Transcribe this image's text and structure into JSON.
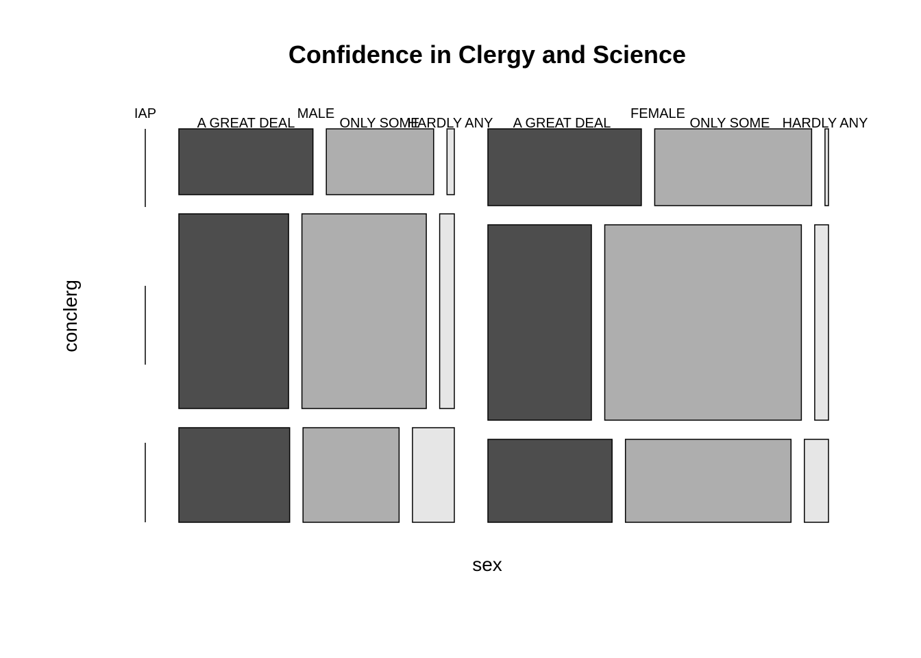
{
  "chart_data": {
    "type": "mosaic",
    "title": "Confidence in Clergy and Science",
    "xlabel": "sex",
    "ylabel": "conclerg",
    "x_variable_levels": [
      "IAP",
      "MALE",
      "FEMALE"
    ],
    "inner_variable_levels": [
      "A GREAT DEAL",
      "ONLY SOME",
      "HARDLY ANY"
    ],
    "fill_colors": {
      "A GREAT DEAL": "#4d4d4d",
      "ONLY SOME": "#aeaeae",
      "HARDLY ANY": "#e6e6e6"
    },
    "rows": [
      {
        "row": 1,
        "MALE": {
          "A GREAT DEAL": 0.55,
          "ONLY SOME": 0.44,
          "HARDLY ANY": 0.03
        },
        "FEMALE": {
          "A GREAT DEAL": 0.44,
          "ONLY SOME": 0.45,
          "HARDLY ANY": 0.01
        }
      },
      {
        "row": 2,
        "MALE": {
          "A GREAT DEAL": 0.45,
          "ONLY SOME": 0.51,
          "HARDLY ANY": 0.06
        },
        "FEMALE": {
          "A GREAT DEAL": 0.3,
          "ONLY SOME": 0.57,
          "HARDLY ANY": 0.04
        }
      },
      {
        "row": 3,
        "MALE": {
          "A GREAT DEAL": 0.45,
          "ONLY SOME": 0.39,
          "HARDLY ANY": 0.17
        },
        "FEMALE": {
          "A GREAT DEAL": 0.36,
          "ONLY SOME": 0.48,
          "HARDLY ANY": 0.07
        }
      }
    ],
    "grid": false,
    "legend": "none"
  }
}
